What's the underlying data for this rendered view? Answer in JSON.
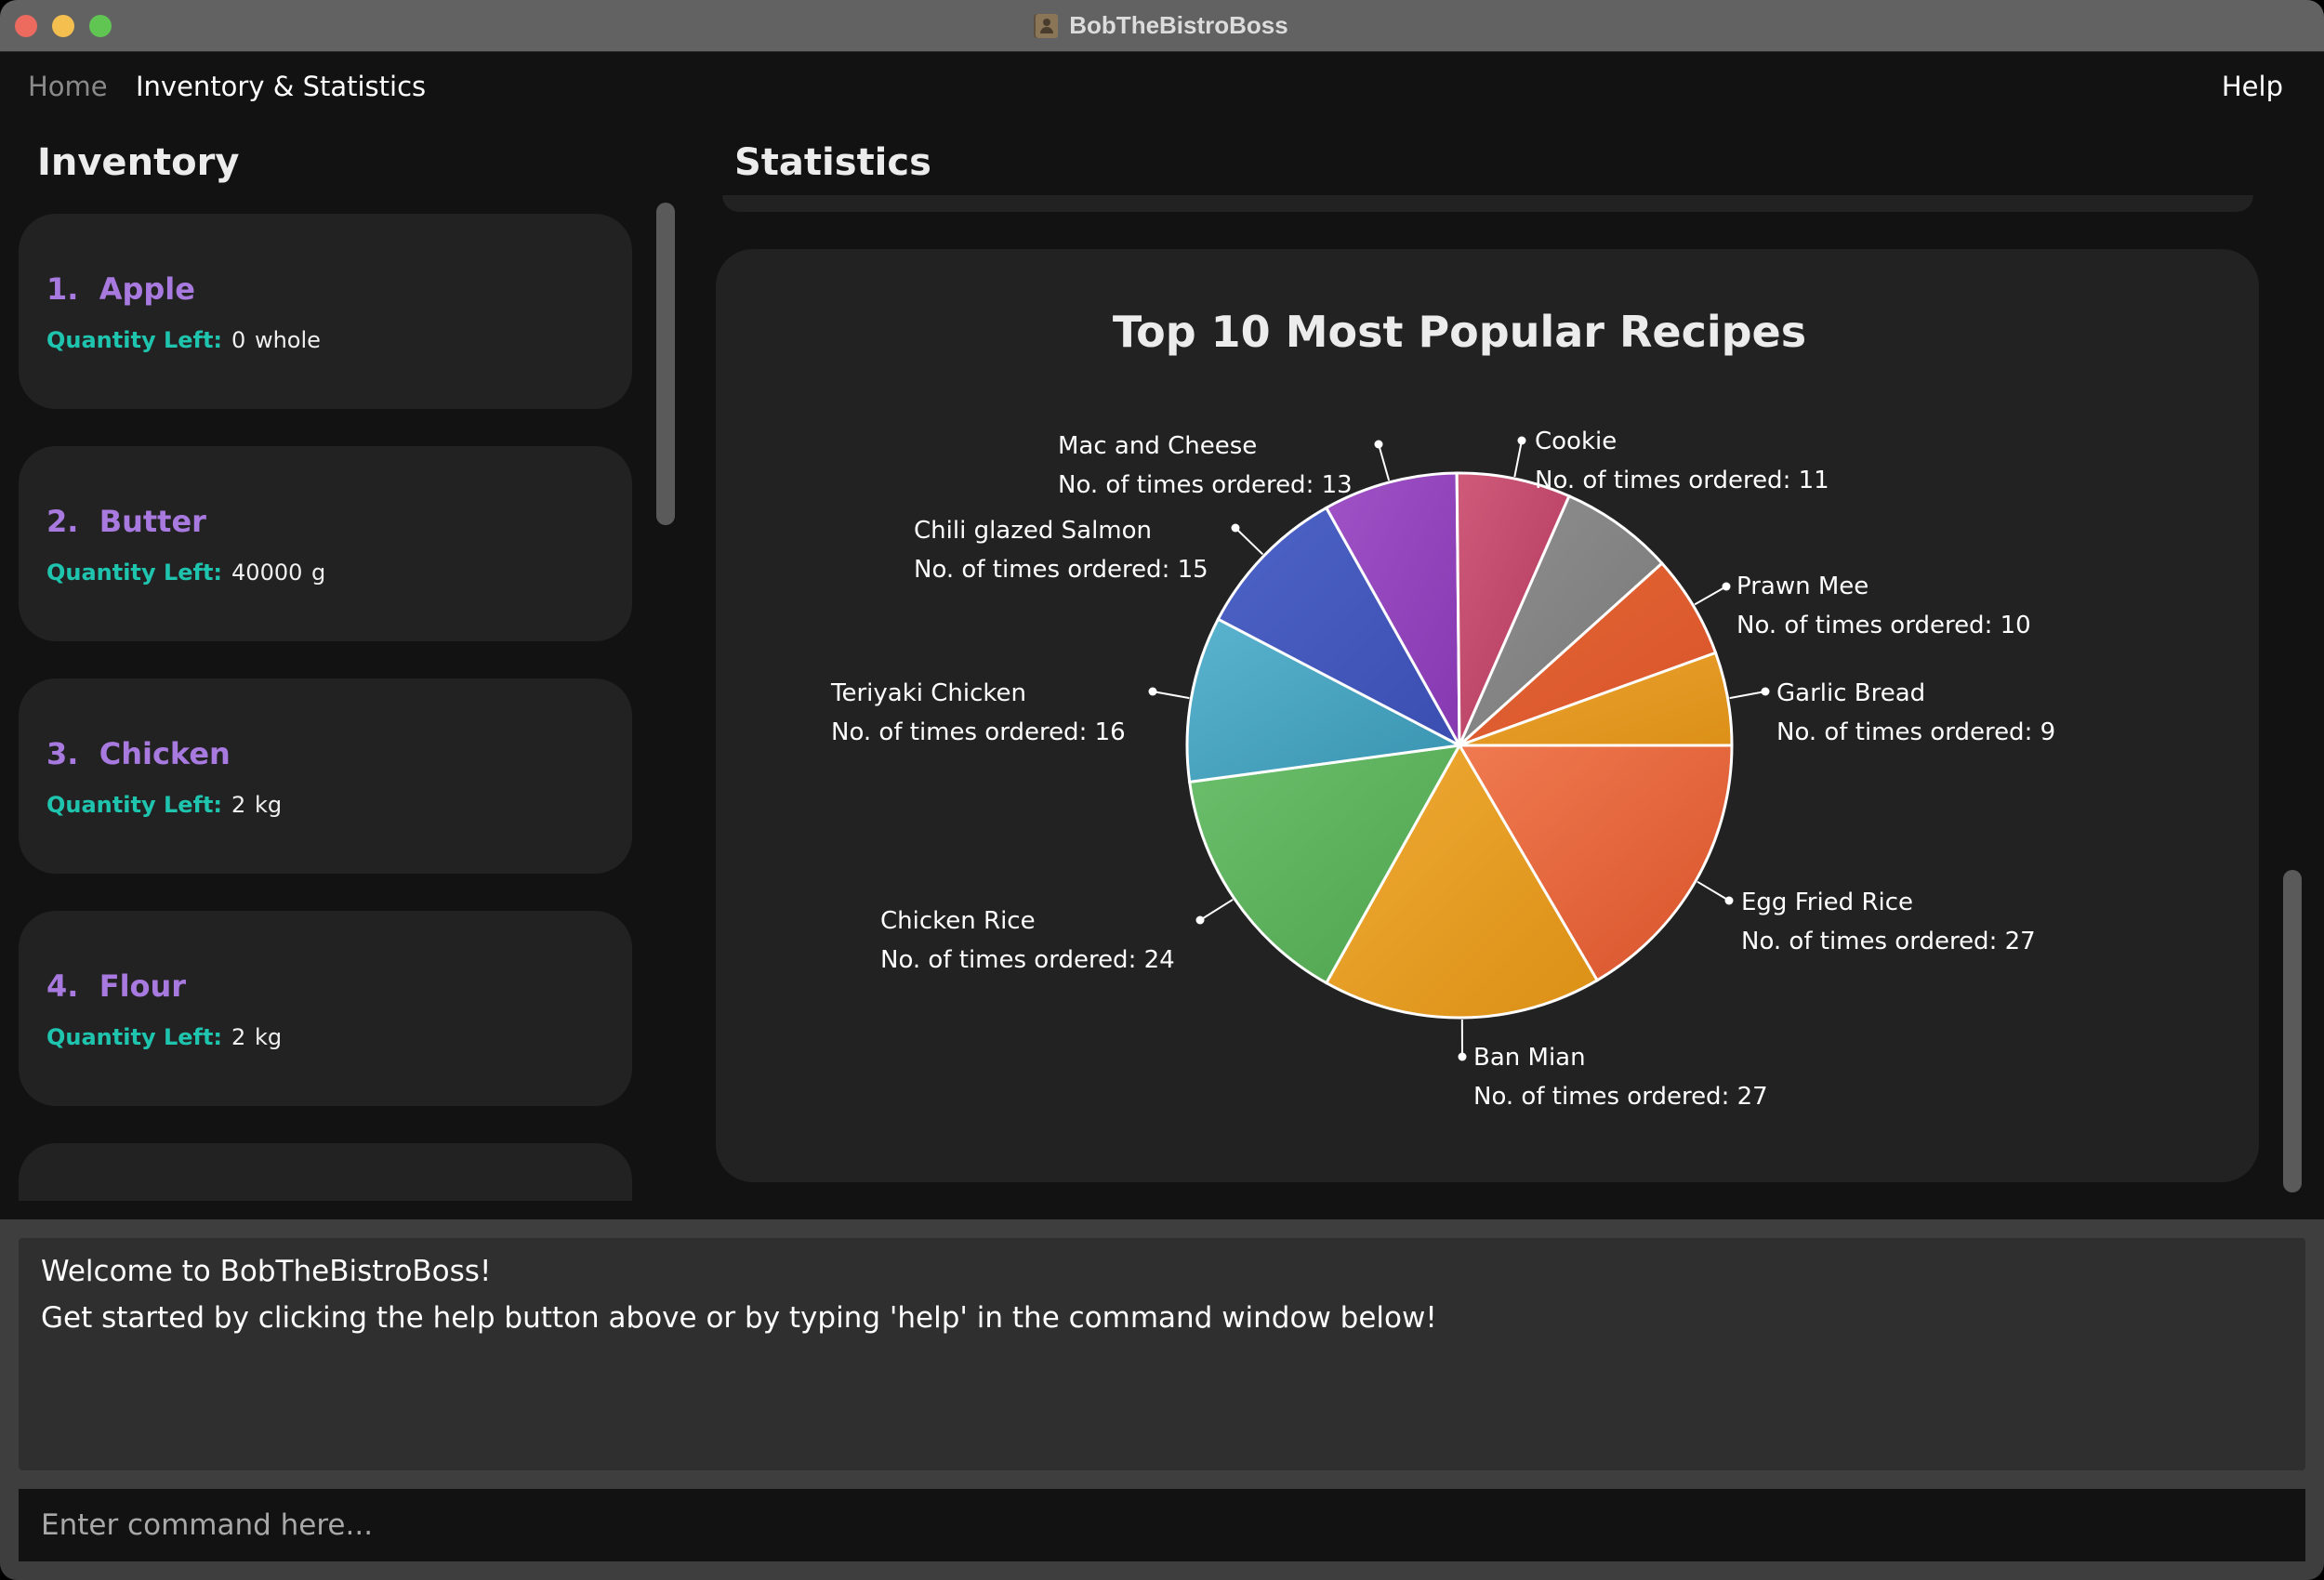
{
  "window": {
    "title": "BobTheBistroBoss",
    "app_icon": "contacts-icon"
  },
  "menubar": {
    "items": [
      {
        "label": "Home",
        "active": false
      },
      {
        "label": "Inventory & Statistics",
        "active": true
      }
    ],
    "help_label": "Help"
  },
  "inventory": {
    "heading": "Inventory",
    "quantity_label": "Quantity Left:",
    "items": [
      {
        "index": "1.",
        "name": "Apple",
        "quantity": "0",
        "unit": "whole"
      },
      {
        "index": "2.",
        "name": "Butter",
        "quantity": "40000",
        "unit": "g"
      },
      {
        "index": "3.",
        "name": "Chicken",
        "quantity": "2",
        "unit": "kg"
      },
      {
        "index": "4.",
        "name": "Flour",
        "quantity": "2",
        "unit": "kg"
      }
    ]
  },
  "statistics": {
    "heading": "Statistics"
  },
  "chart_data": {
    "type": "pie",
    "title": "Top 10 Most Popular Recipes",
    "label_prefix": "No. of times ordered: ",
    "start_angle_deg": 0,
    "direction": "clockwise",
    "legend": "none",
    "categories": [
      "Egg Fried Rice",
      "Ban Mian",
      "Chicken Rice",
      "Teriyaki Chicken",
      "Chili glazed Salmon",
      "Mac and Cheese",
      "Cookie",
      "",
      "Prawn Mee",
      "Garlic Bread"
    ],
    "values": [
      27,
      27,
      24,
      16,
      15,
      13,
      11,
      11,
      10,
      9
    ],
    "labels_visible": [
      true,
      true,
      true,
      true,
      true,
      true,
      true,
      false,
      true,
      true
    ],
    "colors": [
      [
        "#f07a50",
        "#d8532a"
      ],
      [
        "#efab35",
        "#db8f15"
      ],
      [
        "#6cbf6c",
        "#4ea34e"
      ],
      [
        "#5ab4cf",
        "#3893b0"
      ],
      [
        "#4f64c8",
        "#3a4db0"
      ],
      [
        "#a052c6",
        "#8538b0"
      ],
      [
        "#cf5a7a",
        "#b0385c"
      ],
      [
        "#909090",
        "#777777"
      ],
      [
        "#e46735",
        "#d8532a"
      ],
      [
        "#eaa230",
        "#dc9018"
      ]
    ]
  },
  "results": {
    "lines": [
      "Welcome to BobTheBistroBoss!",
      "Get started by clicking the help button above or by typing 'help' in the command window below!"
    ]
  },
  "command": {
    "value": "",
    "placeholder": "Enter command here..."
  }
}
